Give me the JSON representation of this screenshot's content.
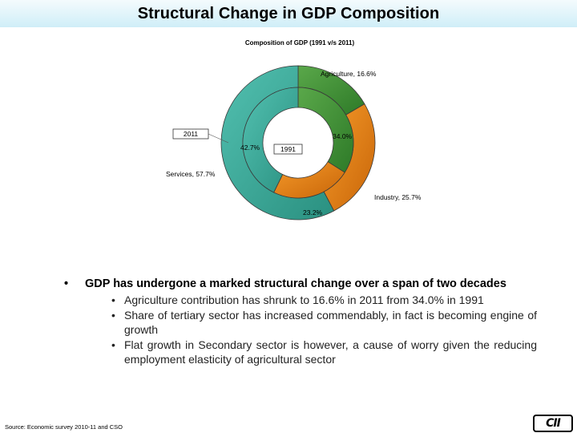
{
  "slide": {
    "title": "Structural Change in GDP Composition",
    "source": "Source: Economic survey 2010-11 and CSO",
    "logo": "CII"
  },
  "chart_data": {
    "type": "doughnut",
    "title": "Composition of GDP (1991 v/s 2011)",
    "categories": [
      "Agriculture",
      "Industry",
      "Services"
    ],
    "series": [
      {
        "name": "2011",
        "values": [
          16.6,
          25.7,
          57.7
        ]
      },
      {
        "name": "1991",
        "values": [
          34.0,
          23.2,
          42.7
        ]
      }
    ],
    "colors": {
      "Agriculture": "#3a8a32",
      "Industry": "#e07b10",
      "Services": "#3aa89a"
    },
    "labels": {
      "outer": [
        "Agriculture, 16.6%",
        "Industry, 25.7%",
        "Services, 57.7%"
      ],
      "inner": [
        "34.0%",
        "23.2%",
        "42.7%"
      ]
    },
    "ring_names": [
      "2011",
      "1991"
    ]
  },
  "bullets": {
    "main": "GDP has undergone a marked structural change over a span of two decades",
    "sub": [
      "Agriculture contribution has shrunk to 16.6% in 2011 from 34.0% in 1991",
      "Share of tertiary sector has increased commendably, in fact is becoming engine of growth",
      "Flat growth in Secondary sector is however, a cause of worry given the reducing employment elasticity of agricultural sector"
    ],
    "marker": "•"
  }
}
